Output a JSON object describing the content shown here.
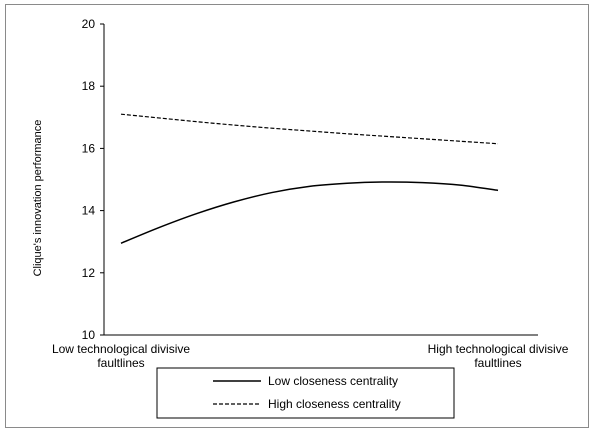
{
  "chart_data": {
    "type": "line",
    "ylabel": "Clique's innovation performance",
    "ylim": [
      10,
      20
    ],
    "yticks": [
      10,
      12,
      14,
      16,
      18,
      20
    ],
    "x_labels": {
      "left": [
        "Low technological divisive",
        "faultlines"
      ],
      "right": [
        "High technological divisive",
        "faultlines"
      ]
    },
    "x": [
      0,
      0.1,
      0.2,
      0.3,
      0.4,
      0.5,
      0.6,
      0.7,
      0.8,
      0.9,
      1.0
    ],
    "series": [
      {
        "name": "Low closeness centrality",
        "style": "solid",
        "values": [
          12.95,
          13.45,
          13.9,
          14.28,
          14.58,
          14.78,
          14.88,
          14.92,
          14.9,
          14.82,
          14.65
        ]
      },
      {
        "name": "High closeness centrality",
        "style": "dashed",
        "values": [
          17.1,
          16.98,
          16.86,
          16.75,
          16.65,
          16.56,
          16.47,
          16.39,
          16.31,
          16.23,
          16.15
        ]
      }
    ],
    "grid": false,
    "legend_position": "bottom"
  }
}
